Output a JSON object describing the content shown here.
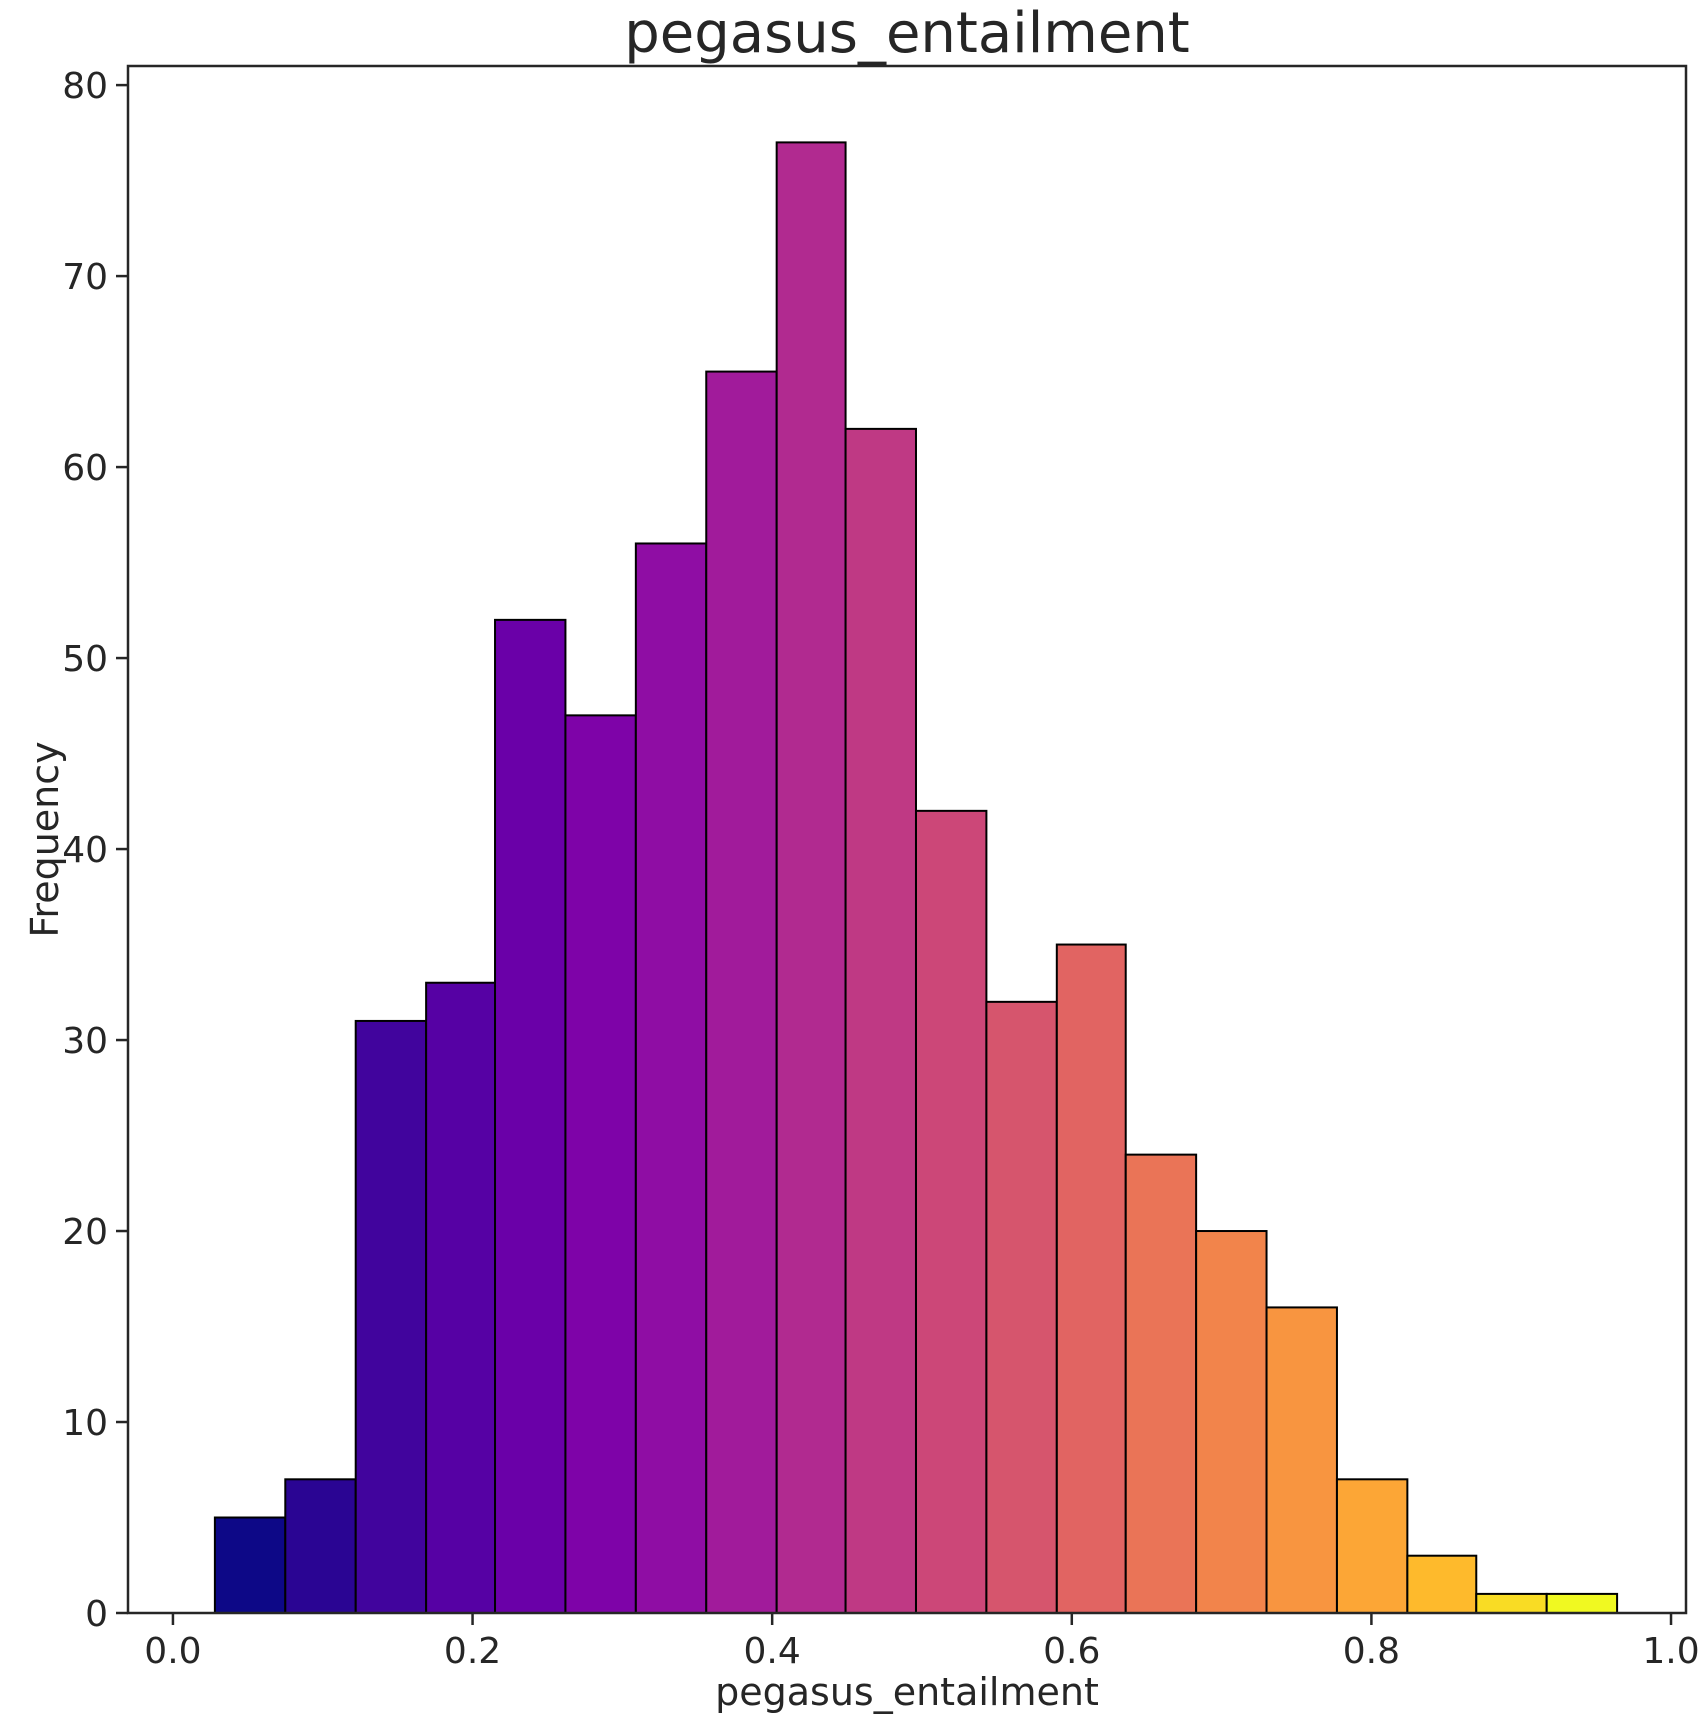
{
  "chart_data": {
    "type": "bar",
    "title": "pegasus_entailment",
    "xlabel": "pegasus_entailment",
    "ylabel": "Frequency",
    "xlim": [
      -0.03,
      1.01
    ],
    "ylim": [
      0,
      81
    ],
    "grid": false,
    "legend": "none",
    "x_ticks": [
      "0.0",
      "0.2",
      "0.4",
      "0.6",
      "0.8",
      "1.0"
    ],
    "x_tick_values": [
      0.0,
      0.2,
      0.4,
      0.6,
      0.8,
      1.0
    ],
    "y_ticks": [
      "0",
      "10",
      "20",
      "30",
      "40",
      "50",
      "60",
      "70",
      "80"
    ],
    "y_tick_values": [
      0,
      10,
      20,
      30,
      40,
      50,
      60,
      70,
      80
    ],
    "bin_edges": [
      0.028,
      0.075,
      0.122,
      0.169,
      0.215,
      0.262,
      0.309,
      0.356,
      0.403,
      0.449,
      0.496,
      0.543,
      0.59,
      0.636,
      0.683,
      0.73,
      0.777,
      0.824,
      0.87,
      0.917,
      0.964
    ],
    "values": [
      5,
      7,
      31,
      33,
      52,
      47,
      56,
      65,
      77,
      62,
      42,
      32,
      35,
      24,
      20,
      16,
      7,
      3,
      1,
      1
    ],
    "colormap": "plasma",
    "bar_colors": [
      "#0d0887",
      "#2a0593",
      "#41049d",
      "#5601a4",
      "#6a00a8",
      "#7e03a8",
      "#8f0da4",
      "#a11b9b",
      "#b12a90",
      "#bf3984",
      "#cc4778",
      "#d6556d",
      "#e16462",
      "#ea7457",
      "#f2844b",
      "#f89540",
      "#fca636",
      "#feba2c",
      "#f9dc24",
      "#f0f921"
    ],
    "edge_color": "#000000"
  }
}
